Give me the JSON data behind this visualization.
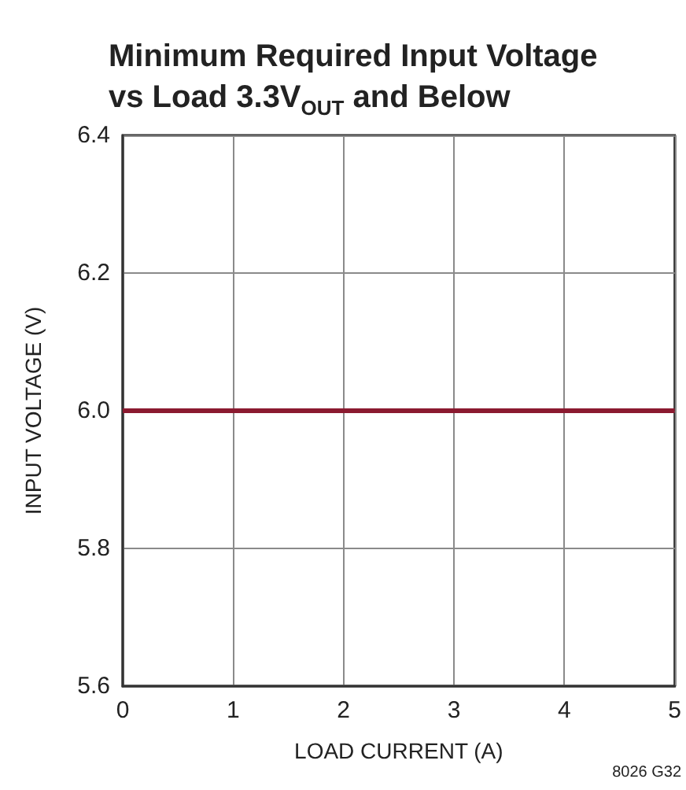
{
  "chart_data": {
    "type": "line",
    "title": "Minimum Required Input Voltage\nvs Load 3.3V$_{OUT}$ and Below",
    "xlabel": "LOAD CURRENT (A)",
    "ylabel": "INPUT VOLTAGE (V)",
    "x": [
      0,
      5
    ],
    "values": [
      6.0,
      6.0
    ],
    "color": "#8b1a30",
    "xlim": [
      0,
      5
    ],
    "xticks": [
      0,
      1,
      2,
      3,
      4,
      5
    ],
    "ylim": [
      5.6,
      6.4
    ],
    "yticks": [
      {
        "value": 5.6,
        "label": "5.6"
      },
      {
        "value": 5.8,
        "label": "5.8"
      },
      {
        "value": 6.0,
        "label": "6.0"
      },
      {
        "value": 6.2,
        "label": "6.2"
      },
      {
        "value": 6.4,
        "label": "6.4"
      }
    ],
    "grid": true,
    "marker": "none",
    "line_style": "solid",
    "annotations": [
      "8026 G32"
    ]
  }
}
